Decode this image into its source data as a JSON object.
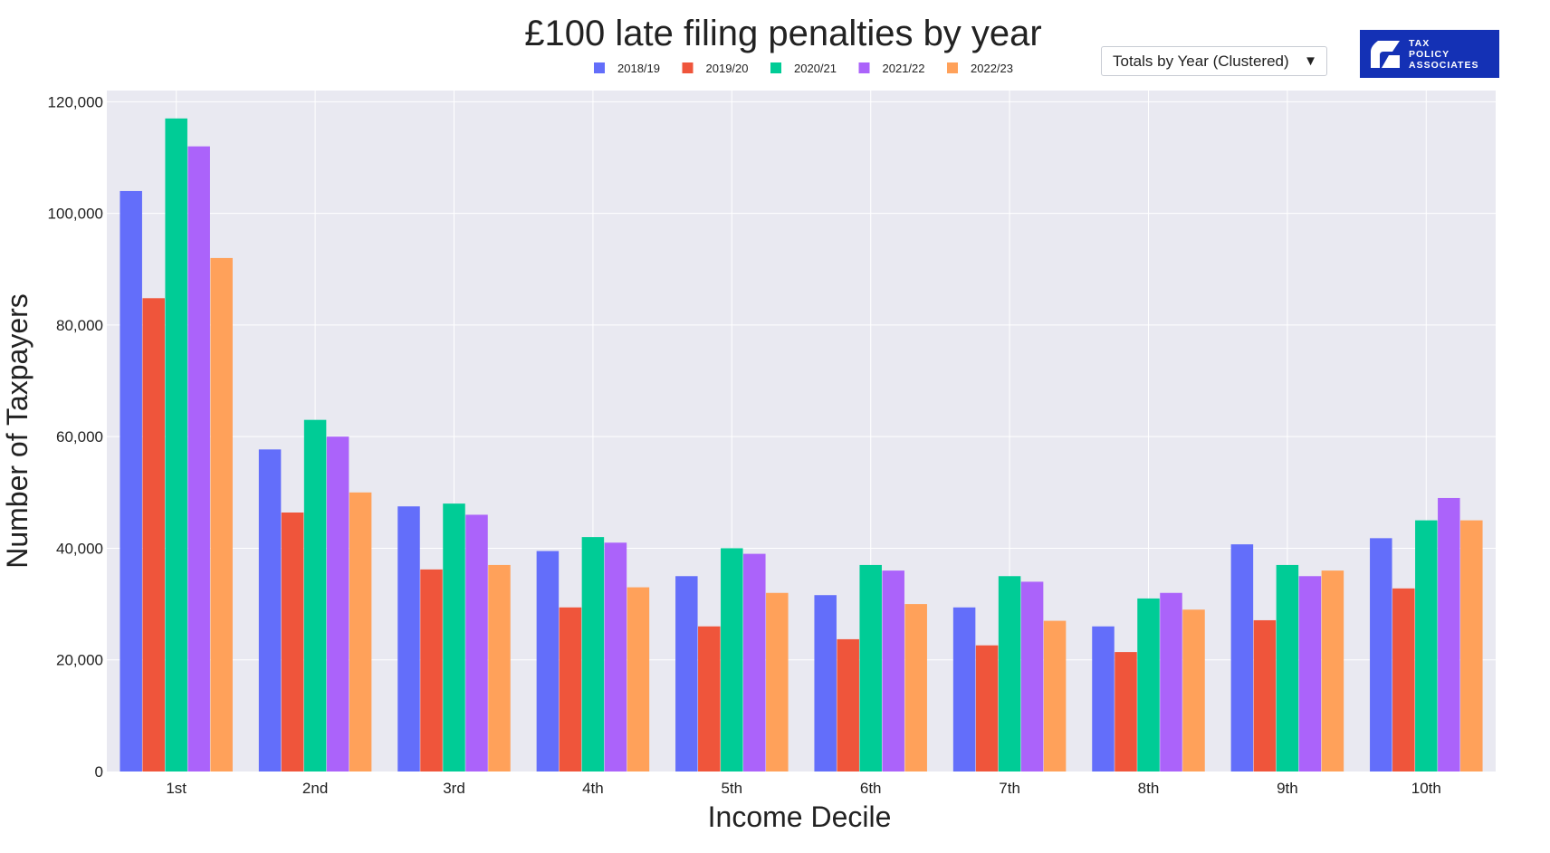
{
  "logo": {
    "lines": [
      "TAX",
      "POLICY",
      "ASSOCIATES"
    ]
  },
  "dropdown": {
    "label": "Totals by Year (Clustered)",
    "arrow": "▼"
  },
  "chart_data": {
    "type": "bar",
    "title": "£100 late filing penalties by year",
    "xlabel": "Income Decile",
    "ylabel": "Number of Taxpayers",
    "categories": [
      "1st",
      "2nd",
      "3rd",
      "4th",
      "5th",
      "6th",
      "7th",
      "8th",
      "9th",
      "10th"
    ],
    "ylim": [
      0,
      122000
    ],
    "yticks": [
      0,
      20000,
      40000,
      60000,
      80000,
      100000,
      120000
    ],
    "ytick_labels": [
      "0",
      "20,000",
      "40,000",
      "60,000",
      "80,000",
      "100,000",
      "120,000"
    ],
    "grid": true,
    "legend_position": "top",
    "series": [
      {
        "name": "2018/19",
        "color": "#636efa",
        "values": [
          104000,
          57700,
          47500,
          39500,
          35000,
          31600,
          29400,
          26000,
          40700,
          41800
        ]
      },
      {
        "name": "2019/20",
        "color": "#ef553b",
        "values": [
          84800,
          46400,
          36200,
          29400,
          26000,
          23700,
          22600,
          21400,
          27100,
          32800
        ]
      },
      {
        "name": "2020/21",
        "color": "#00cc96",
        "values": [
          117000,
          63000,
          48000,
          42000,
          40000,
          37000,
          35000,
          31000,
          37000,
          45000
        ]
      },
      {
        "name": "2021/22",
        "color": "#ab63fa",
        "values": [
          112000,
          60000,
          46000,
          41000,
          39000,
          36000,
          34000,
          32000,
          35000,
          49000
        ]
      },
      {
        "name": "2022/23",
        "color": "#ffa15a",
        "values": [
          92000,
          50000,
          37000,
          33000,
          32000,
          30000,
          27000,
          29000,
          36000,
          45000
        ]
      }
    ]
  }
}
